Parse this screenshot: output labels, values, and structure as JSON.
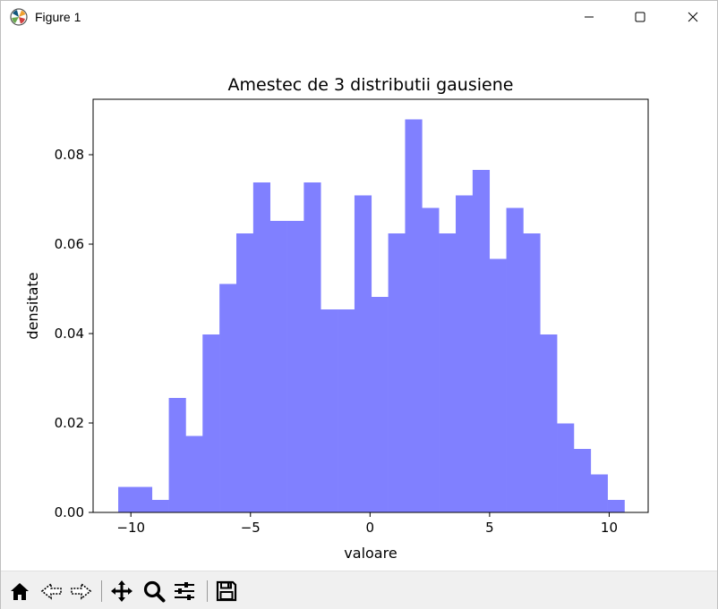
{
  "window": {
    "title": "Figure 1",
    "icons": {
      "app": "matplotlib-icon",
      "minimize": "minimize-icon",
      "maximize": "maximize-icon",
      "close": "close-icon"
    }
  },
  "toolbar": {
    "buttons": [
      {
        "name": "home",
        "icon": "home-icon"
      },
      {
        "name": "back",
        "icon": "back-arrow-icon"
      },
      {
        "name": "forward",
        "icon": "forward-arrow-icon"
      },
      {
        "name": "pan",
        "icon": "pan-move-icon"
      },
      {
        "name": "zoom",
        "icon": "zoom-magnifier-icon"
      },
      {
        "name": "configure",
        "icon": "configure-sliders-icon"
      },
      {
        "name": "save",
        "icon": "save-disk-icon"
      }
    ]
  },
  "chart_data": {
    "type": "bar",
    "title": "Amestec de 3 distributii gausiene",
    "xlabel": "valoare",
    "ylabel": "densitate",
    "bar_color": "#8080ff",
    "xlim": [
      -11.58,
      11.63
    ],
    "ylim": [
      0,
      0.0924
    ],
    "x_ticks": [
      -10,
      -5,
      0,
      5,
      10
    ],
    "x_tick_labels": [
      "−10",
      "−5",
      "0",
      "5",
      "10"
    ],
    "y_ticks": [
      0.0,
      0.02,
      0.04,
      0.06,
      0.08
    ],
    "y_tick_labels": [
      "0.00",
      "0.02",
      "0.04",
      "0.06",
      "0.08"
    ],
    "bin_start": -10.53,
    "bin_width": 0.7056,
    "values": [
      0.0057,
      0.0057,
      0.0028,
      0.0256,
      0.0171,
      0.0398,
      0.0511,
      0.0624,
      0.0738,
      0.0652,
      0.0652,
      0.0738,
      0.0454,
      0.0454,
      0.0709,
      0.0482,
      0.0624,
      0.0879,
      0.0681,
      0.0624,
      0.0709,
      0.0766,
      0.0567,
      0.0681,
      0.0624,
      0.0398,
      0.0199,
      0.0142,
      0.0085,
      0.0028
    ],
    "grid": false,
    "legend": "none"
  }
}
